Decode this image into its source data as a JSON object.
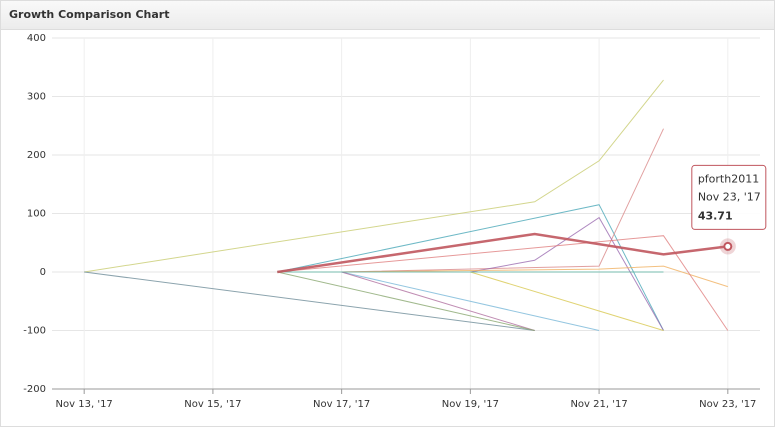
{
  "chart_data": {
    "type": "line",
    "title": "Growth Comparison Chart",
    "xlim": [
      "2017-11-12T12:00:00Z",
      "2017-11-23T12:00:00Z"
    ],
    "xticks": [
      {
        "value": "2017-11-13T00:00:00Z",
        "label": "Nov 13, '17"
      },
      {
        "value": "2017-11-15T00:00:00Z",
        "label": "Nov 15, '17"
      },
      {
        "value": "2017-11-17T00:00:00Z",
        "label": "Nov 17, '17"
      },
      {
        "value": "2017-11-19T00:00:00Z",
        "label": "Nov 19, '17"
      },
      {
        "value": "2017-11-21T00:00:00Z",
        "label": "Nov 21, '17"
      },
      {
        "value": "2017-11-23T00:00:00Z",
        "label": "Nov 23, '17"
      }
    ],
    "ylim": [
      -200,
      400
    ],
    "yticks": [
      -200,
      -100,
      0,
      100,
      200,
      300,
      400
    ],
    "grid": true,
    "series": [
      {
        "color": "#c8cc70",
        "x": [
          "2017-11-13T00:00:00Z",
          "2017-11-20T00:00:00Z",
          "2017-11-21T00:00:00Z",
          "2017-11-22T00:00:00Z"
        ],
        "values": [
          0,
          120,
          190,
          328
        ]
      },
      {
        "color": "#4aa8b8",
        "x": [
          "2017-11-16T00:00:00Z",
          "2017-11-21T00:00:00Z",
          "2017-11-22T00:00:00Z"
        ],
        "values": [
          0,
          115,
          -100
        ]
      },
      {
        "color": "#6e8c99",
        "x": [
          "2017-11-13T00:00:00Z",
          "2017-11-20T00:00:00Z"
        ],
        "values": [
          0,
          -100
        ]
      },
      {
        "color": "#d98888",
        "x": [
          "2017-11-17T00:00:00Z",
          "2017-11-21T00:00:00Z",
          "2017-11-22T00:00:00Z"
        ],
        "values": [
          0,
          10,
          245
        ]
      },
      {
        "color": "#9b6bb0",
        "x": [
          "2017-11-19T00:00:00Z",
          "2017-11-20T00:00:00Z",
          "2017-11-21T00:00:00Z",
          "2017-11-22T00:00:00Z"
        ],
        "values": [
          0,
          20,
          93,
          -100
        ]
      },
      {
        "color": "#f0b060",
        "x": [
          "2017-11-17T00:00:00Z",
          "2017-11-21T00:00:00Z",
          "2017-11-22T00:00:00Z",
          "2017-11-23T00:00:00Z"
        ],
        "values": [
          0,
          5,
          10,
          -25
        ]
      },
      {
        "color": "#e08080",
        "x": [
          "2017-11-16T00:00:00Z",
          "2017-11-22T00:00:00Z",
          "2017-11-23T00:00:00Z"
        ],
        "values": [
          0,
          62,
          -100
        ]
      },
      {
        "color": "#79b8d8",
        "x": [
          "2017-11-17T00:00:00Z",
          "2017-11-20T00:00:00Z",
          "2017-11-21T00:00:00Z"
        ],
        "values": [
          0,
          -75,
          -100
        ]
      },
      {
        "color": "#b070a0",
        "x": [
          "2017-11-17T00:00:00Z",
          "2017-11-20T00:00:00Z"
        ],
        "values": [
          0,
          -100
        ]
      },
      {
        "color": "#d8c850",
        "x": [
          "2017-11-19T00:00:00Z",
          "2017-11-22T00:00:00Z"
        ],
        "values": [
          0,
          -100
        ]
      },
      {
        "color": "#8aa870",
        "x": [
          "2017-11-16T00:00:00Z",
          "2017-11-20T00:00:00Z"
        ],
        "values": [
          0,
          -100
        ]
      },
      {
        "color": "#5ab0a0",
        "x": [
          "2017-11-16T00:00:00Z",
          "2017-11-21T00:00:00Z",
          "2017-11-22T00:00:00Z"
        ],
        "values": [
          0,
          0,
          0
        ]
      },
      {
        "name": "pforth2011",
        "color": "#c0565e",
        "x": [
          "2017-11-16T00:00:00Z",
          "2017-11-20T00:00:00Z",
          "2017-11-22T00:00:00Z",
          "2017-11-23T00:00:00Z"
        ],
        "values": [
          0,
          65,
          30,
          43.71
        ]
      }
    ]
  }
}
